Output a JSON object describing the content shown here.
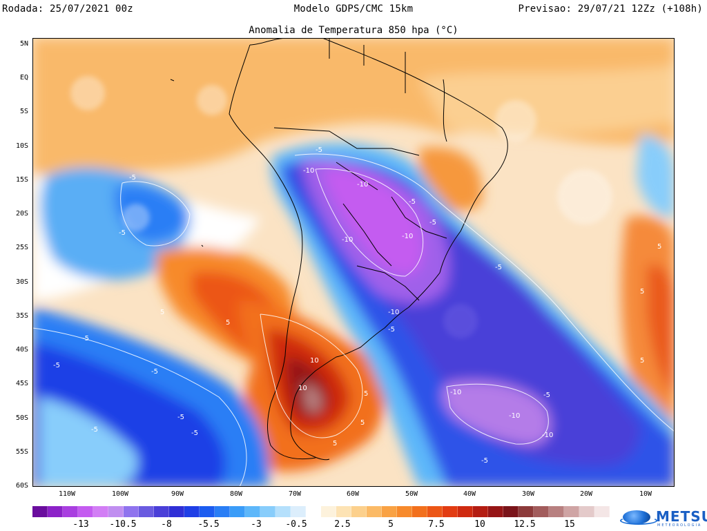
{
  "header": {
    "run": "Rodada: 25/07/2021 00z",
    "model": "Modelo GDPS/CMC 15km",
    "forecast": "Previsao: 29/07/21 12Zz (+108h)"
  },
  "subtitle": "Anomalia de Temperatura 850 hpa (°C)",
  "lat_labels": [
    "5N",
    "EQ",
    "5S",
    "10S",
    "15S",
    "20S",
    "25S",
    "30S",
    "35S",
    "40S",
    "45S",
    "50S",
    "55S",
    "60S"
  ],
  "lon_labels": [
    "110W",
    "100W",
    "90W",
    "80W",
    "70W",
    "60W",
    "50W",
    "40W",
    "30W",
    "20W",
    "10W"
  ],
  "contour_labels": [
    "-5",
    "-10",
    "-10",
    "-5",
    "-5",
    "-10",
    "-10",
    "-5",
    "-10",
    "-5",
    "5",
    "5",
    "10",
    "10",
    "5",
    "5",
    "-5",
    "-5",
    "-5",
    "-5",
    "-5",
    "-5",
    "-5",
    "-10",
    "-10",
    "-10",
    "-5",
    "-5",
    "-5",
    "5",
    "5",
    "5",
    "5"
  ],
  "colorbar": {
    "colors": [
      "#6a0d9e",
      "#8c22c8",
      "#a93fe0",
      "#c45cf0",
      "#d27ef5",
      "#c08ef0",
      "#8f73ee",
      "#6a5be0",
      "#4a3fd8",
      "#2f2fd6",
      "#1f3fe6",
      "#1c5cf0",
      "#2a7ef5",
      "#3a9cf8",
      "#5db7fa",
      "#88cdfb",
      "#b5e0fc",
      "#dceefc",
      "#ffffff",
      "#fdf2dc",
      "#fde3b4",
      "#fcd08c",
      "#fbba66",
      "#f9a244",
      "#f78a2c",
      "#f2701d",
      "#ec5616",
      "#e23c12",
      "#cf2a10",
      "#b41d12",
      "#961516",
      "#7a141a",
      "#8c3a3a",
      "#a25c5c",
      "#b88080",
      "#cfa4a4",
      "#e4caca",
      "#f4e6e6"
    ],
    "labels": [
      "-13",
      "-10.5",
      "-8",
      "-5.5",
      "-3",
      "-0.5",
      "2.5",
      "5",
      "7.5",
      "10",
      "12.5",
      "15"
    ]
  },
  "logo": {
    "name": "METSUL",
    "sub": "METEOROLOGIA"
  }
}
